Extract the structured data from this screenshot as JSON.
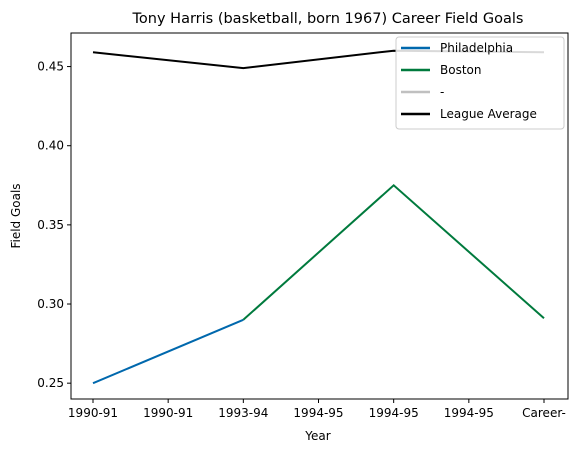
{
  "chart_data": {
    "type": "line",
    "title": "Tony Harris (basketball, born 1967) Career Field Goals",
    "xlabel": "Year",
    "ylabel": "Field Goals",
    "categories": [
      "1990-91",
      "1990-91",
      "1993-94",
      "1994-95",
      "1994-95",
      "1994-95",
      "Career-"
    ],
    "ylim": [
      0.24,
      0.4712
    ],
    "yticks": [
      0.25,
      0.3,
      0.35,
      0.4,
      0.45
    ],
    "ytick_labels": [
      "0.25",
      "0.30",
      "0.35",
      "0.40",
      "0.45"
    ],
    "grid": false,
    "legend_position": "top-right",
    "series": [
      {
        "name": "Philadelphia",
        "color": "#0068ad",
        "points": [
          [
            0,
            0.25
          ],
          [
            2,
            0.29
          ]
        ]
      },
      {
        "name": "Boston",
        "color": "#007a3d",
        "points": [
          [
            2,
            0.29
          ],
          [
            4,
            0.375
          ],
          [
            6,
            0.291
          ]
        ]
      },
      {
        "name": "-",
        "color": "#c0c0c0",
        "points": []
      },
      {
        "name": "League Average",
        "color": "#000000",
        "points": [
          [
            0,
            0.459
          ],
          [
            2,
            0.449
          ],
          [
            4,
            0.46
          ],
          [
            6,
            0.459
          ]
        ]
      }
    ]
  }
}
